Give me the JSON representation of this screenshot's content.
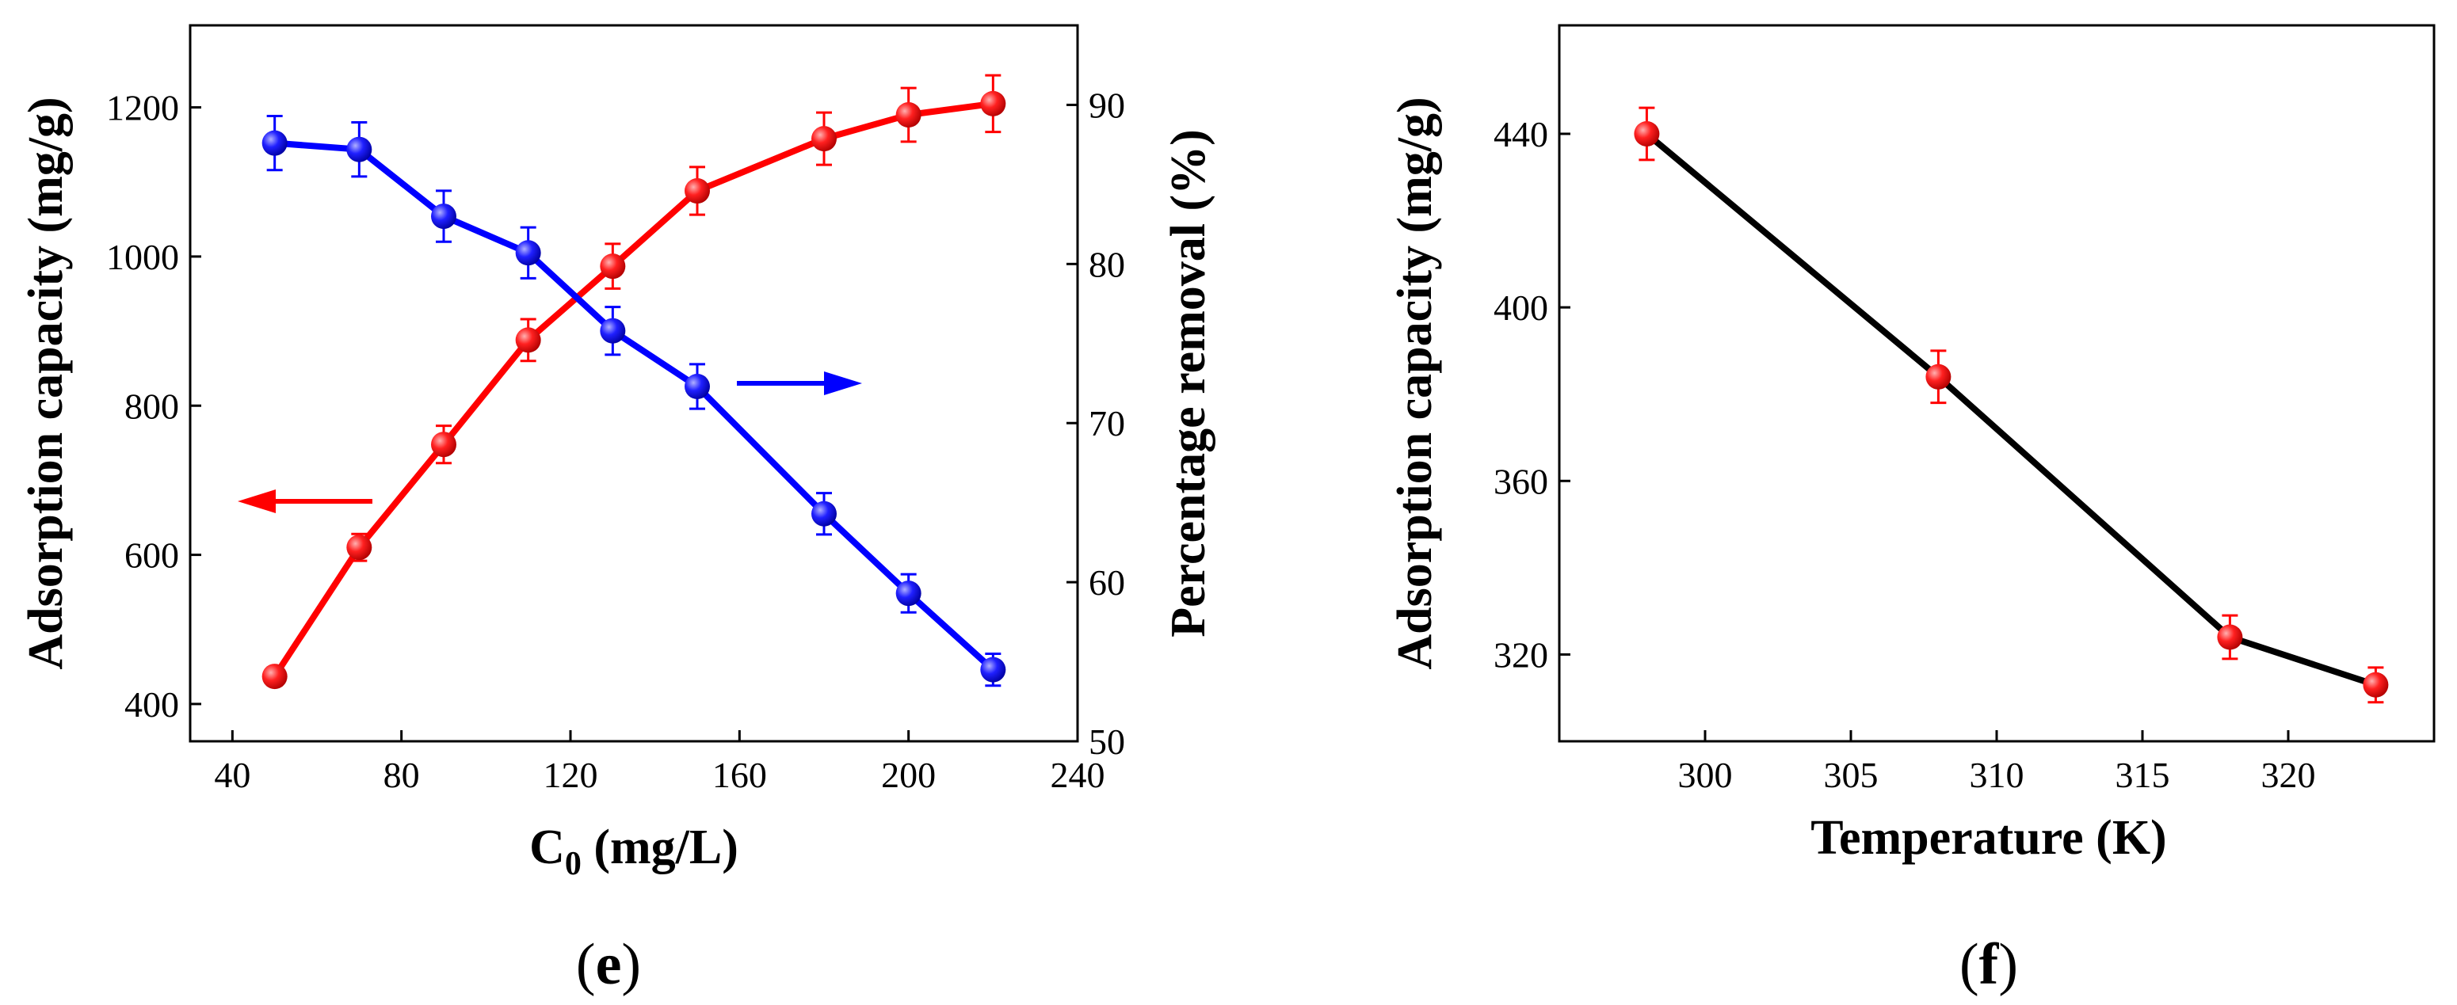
{
  "chart_data": [
    {
      "type": "line",
      "panel_label": "e",
      "xlabel_main": "C",
      "xlabel_sub": "0",
      "xlabel_unit": " (mg/L)",
      "ylabel": "Adsorption capacity (mg/g)",
      "y2label": "Percentage removal (%)",
      "xlim": [
        30,
        240
      ],
      "ylim": [
        350,
        1310
      ],
      "y2lim": [
        50,
        95
      ],
      "xticks": [
        40,
        80,
        120,
        160,
        200,
        240
      ],
      "yticks": [
        400,
        600,
        800,
        1000,
        1200
      ],
      "y2ticks": [
        50,
        60,
        70,
        80,
        90
      ],
      "series": [
        {
          "name": "Adsorption capacity",
          "axis": "left",
          "color": "#ff0000",
          "arrow": "left",
          "x": [
            50,
            70,
            90,
            110,
            130,
            150,
            180,
            200,
            220
          ],
          "values": [
            437,
            610,
            748,
            888,
            987,
            1088,
            1158,
            1190,
            1205
          ],
          "errors": [
            12,
            18,
            25,
            28,
            30,
            32,
            35,
            36,
            38
          ]
        },
        {
          "name": "Percentage removal",
          "axis": "right",
          "color": "#0000ff",
          "arrow": "right",
          "x": [
            50,
            70,
            90,
            110,
            130,
            150,
            180,
            200,
            220
          ],
          "values": [
            87.6,
            87.2,
            83.0,
            80.7,
            75.8,
            72.3,
            64.3,
            59.3,
            54.5
          ],
          "errors": [
            1.7,
            1.7,
            1.6,
            1.6,
            1.5,
            1.4,
            1.3,
            1.2,
            1.0
          ]
        }
      ]
    },
    {
      "type": "line",
      "panel_label": "f",
      "xlabel": "Temperature (K)",
      "ylabel": "Adsorption capacity (mg/g)",
      "xlim": [
        295,
        325
      ],
      "ylim": [
        300,
        465
      ],
      "xticks": [
        300,
        305,
        310,
        315,
        320
      ],
      "yticks": [
        320,
        360,
        400,
        440
      ],
      "series": [
        {
          "name": "Adsorption capacity",
          "line_color": "#000000",
          "marker_color": "#ff0000",
          "x": [
            298,
            308,
            318,
            323
          ],
          "values": [
            440,
            384,
            324,
            313
          ],
          "errors": [
            6,
            6,
            5,
            4
          ]
        }
      ]
    }
  ]
}
